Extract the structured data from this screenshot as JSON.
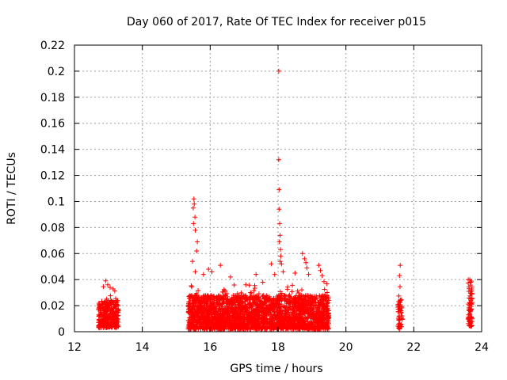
{
  "chart_data": {
    "type": "scatter",
    "title": "Day 060 of 2017, Rate Of TEC Index for receiver p015",
    "xlabel": "GPS time / hours",
    "ylabel": "ROTI / TECUs",
    "xlim": [
      12,
      24
    ],
    "ylim": [
      0,
      0.22
    ],
    "x_ticks": [
      12,
      14,
      16,
      18,
      20,
      22,
      24
    ],
    "y_ticks": [
      0,
      0.02,
      0.04,
      0.06,
      0.08,
      0.1,
      0.12,
      0.14,
      0.16,
      0.18,
      0.2,
      0.22
    ],
    "grid": true,
    "marker": "+",
    "color": "#ff0000",
    "clusters": [
      {
        "x_range": [
          12.7,
          13.3
        ],
        "y_base": [
          0.003,
          0.024
        ],
        "points": 320
      },
      {
        "x_range": [
          15.35,
          19.5
        ],
        "y_base": [
          0.002,
          0.028
        ],
        "points": 2600
      },
      {
        "x_range": [
          21.52,
          21.66
        ],
        "y_base": [
          0.002,
          0.025
        ],
        "points": 50
      },
      {
        "x_range": [
          23.6,
          23.72
        ],
        "y_base": [
          0.004,
          0.04
        ],
        "points": 70
      }
    ],
    "peak_points": [
      {
        "x": 12.92,
        "y": 0.039
      },
      {
        "x": 12.98,
        "y": 0.036
      },
      {
        "x": 13.05,
        "y": 0.034
      },
      {
        "x": 15.52,
        "y": 0.102
      },
      {
        "x": 15.53,
        "y": 0.098
      },
      {
        "x": 15.5,
        "y": 0.095
      },
      {
        "x": 15.55,
        "y": 0.088
      },
      {
        "x": 15.51,
        "y": 0.083
      },
      {
        "x": 15.56,
        "y": 0.078
      },
      {
        "x": 15.62,
        "y": 0.069
      },
      {
        "x": 15.6,
        "y": 0.062
      },
      {
        "x": 15.48,
        "y": 0.054
      },
      {
        "x": 15.56,
        "y": 0.046
      },
      {
        "x": 15.8,
        "y": 0.044
      },
      {
        "x": 15.95,
        "y": 0.048
      },
      {
        "x": 16.05,
        "y": 0.046
      },
      {
        "x": 16.3,
        "y": 0.051
      },
      {
        "x": 16.6,
        "y": 0.042
      },
      {
        "x": 17.05,
        "y": 0.036
      },
      {
        "x": 17.35,
        "y": 0.044
      },
      {
        "x": 17.55,
        "y": 0.038
      },
      {
        "x": 17.8,
        "y": 0.052
      },
      {
        "x": 17.9,
        "y": 0.044
      },
      {
        "x": 18.02,
        "y": 0.2
      },
      {
        "x": 18.02,
        "y": 0.132
      },
      {
        "x": 18.03,
        "y": 0.109
      },
      {
        "x": 18.03,
        "y": 0.094
      },
      {
        "x": 18.05,
        "y": 0.083
      },
      {
        "x": 18.06,
        "y": 0.074
      },
      {
        "x": 18.04,
        "y": 0.069
      },
      {
        "x": 18.07,
        "y": 0.063
      },
      {
        "x": 18.08,
        "y": 0.058
      },
      {
        "x": 18.06,
        "y": 0.054
      },
      {
        "x": 18.1,
        "y": 0.052
      },
      {
        "x": 18.15,
        "y": 0.046
      },
      {
        "x": 18.5,
        "y": 0.045
      },
      {
        "x": 18.72,
        "y": 0.06
      },
      {
        "x": 18.78,
        "y": 0.056
      },
      {
        "x": 18.82,
        "y": 0.053
      },
      {
        "x": 18.85,
        "y": 0.049
      },
      {
        "x": 18.9,
        "y": 0.044
      },
      {
        "x": 19.2,
        "y": 0.051
      },
      {
        "x": 19.25,
        "y": 0.047
      },
      {
        "x": 19.3,
        "y": 0.043
      },
      {
        "x": 21.6,
        "y": 0.051
      },
      {
        "x": 21.58,
        "y": 0.043
      },
      {
        "x": 21.6,
        "y": 0.024
      },
      {
        "x": 23.65,
        "y": 0.04
      },
      {
        "x": 23.68,
        "y": 0.038
      },
      {
        "x": 23.63,
        "y": 0.033
      }
    ]
  }
}
